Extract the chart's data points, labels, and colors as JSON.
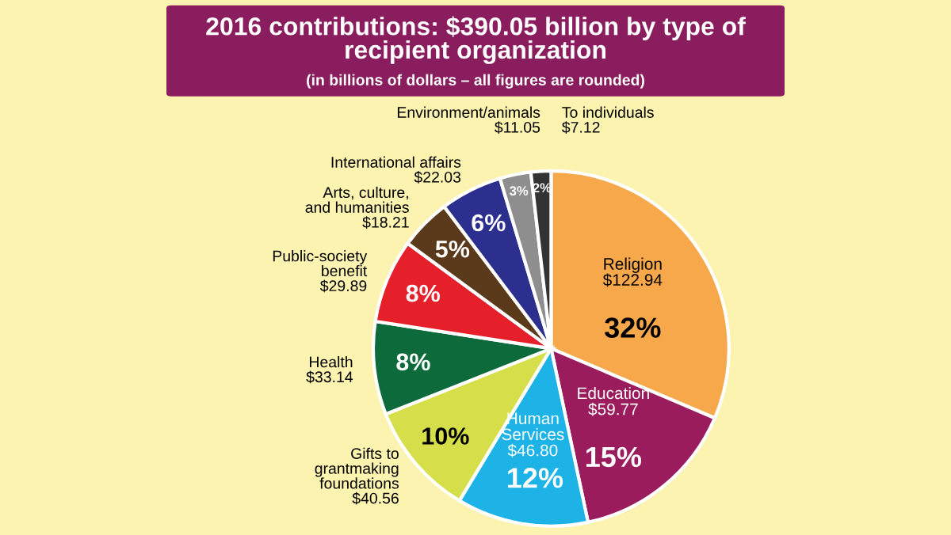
{
  "chart_data": {
    "type": "pie",
    "title": "2016 contributions: $390.05 billion by type of\nrecipient organization",
    "subtitle": "(in billions of dollars – all figures are rounded)",
    "categories": [
      "Religion",
      "Education",
      "Human\nServices",
      "Gifts to\ngrantmaking\nfoundations",
      "Health",
      "Public-society\nbenefit",
      "Arts, culture,\nand humanities",
      "International affairs",
      "Environment/animals",
      "To individuals"
    ],
    "values": [
      122.94,
      59.77,
      46.8,
      40.56,
      33.14,
      29.89,
      18.21,
      22.03,
      11.05,
      7.12
    ],
    "value_labels": [
      "$122.94",
      "$59.77",
      "$46.80",
      "$40.56",
      "$33.14",
      "$29.89",
      "$18.21",
      "$22.03",
      "$11.05",
      "$7.12"
    ],
    "colors": [
      "#f7a84a",
      "#9a1c5c",
      "#1db3e6",
      "#d6df4a",
      "#0d6b3b",
      "#e5202b",
      "#5b3a1c",
      "#2c2f8e",
      "#8e8e8e",
      "#333333"
    ],
    "annotations": [
      {
        "text": "32%",
        "x": "Religion"
      },
      {
        "text": "15%",
        "x": "Education"
      },
      {
        "text": "12%",
        "x": "Human\nServices"
      },
      {
        "text": "10%",
        "x": "Gifts to\ngrantmaking\nfoundations"
      },
      {
        "text": "8%",
        "x": "Health"
      },
      {
        "text": "8%",
        "x": "Public-society\nbenefit"
      },
      {
        "text": "5%",
        "x": "Arts, culture,\nand humanities"
      },
      {
        "text": "6%",
        "x": "International affairs"
      },
      {
        "text": "3%",
        "x": "Environment/animals"
      },
      {
        "text": "2%",
        "x": "To individuals"
      }
    ]
  }
}
